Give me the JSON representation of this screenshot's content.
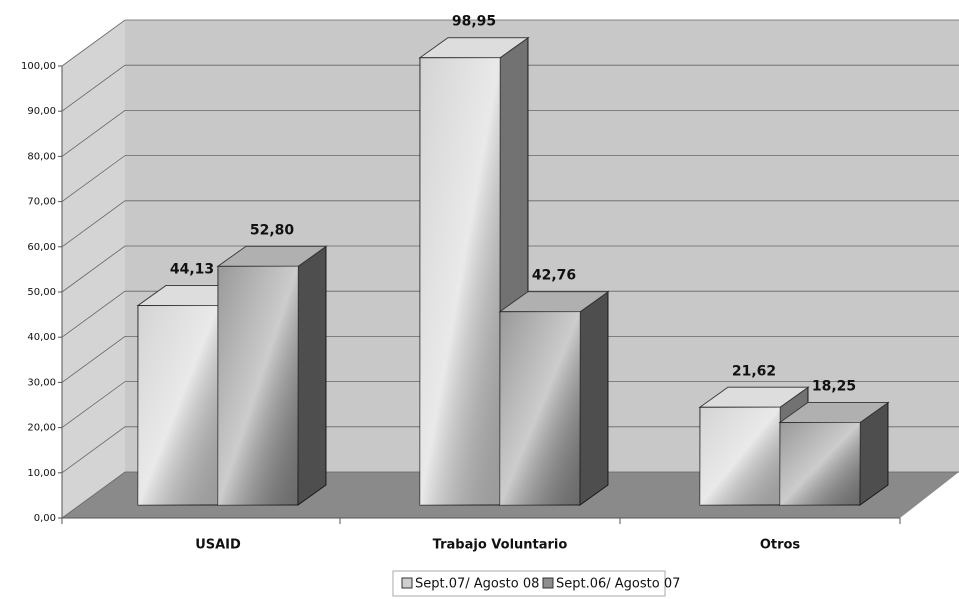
{
  "chart_data": {
    "type": "bar3d",
    "categories": [
      "USAID",
      "Trabajo Voluntario",
      "Otros"
    ],
    "series": [
      {
        "name": "Sept.07/ Agosto 08",
        "color": "#cfcfcf",
        "values": [
          44.13,
          98.95,
          21.62
        ],
        "value_labels": [
          "44,13",
          "98,95",
          "21,62"
        ]
      },
      {
        "name": "Sept.06/ Agosto 07",
        "color": "#8e8e8e",
        "values": [
          52.8,
          42.76,
          18.25
        ],
        "value_labels": [
          "52,80",
          "42,76",
          "18,25"
        ]
      }
    ],
    "ylim": [
      0,
      100
    ],
    "yticks": [
      {
        "value": 0,
        "label": "0,00"
      },
      {
        "value": 10,
        "label": "10,00"
      },
      {
        "value": 20,
        "label": "20,00"
      },
      {
        "value": 30,
        "label": "30,00"
      },
      {
        "value": 40,
        "label": "40,00"
      },
      {
        "value": 50,
        "label": "50,00"
      },
      {
        "value": 60,
        "label": "60,00"
      },
      {
        "value": 70,
        "label": "70,00"
      },
      {
        "value": 80,
        "label": "80,00"
      },
      {
        "value": 90,
        "label": "90,00"
      },
      {
        "value": 100,
        "label": "100,00"
      }
    ],
    "grid": true
  }
}
